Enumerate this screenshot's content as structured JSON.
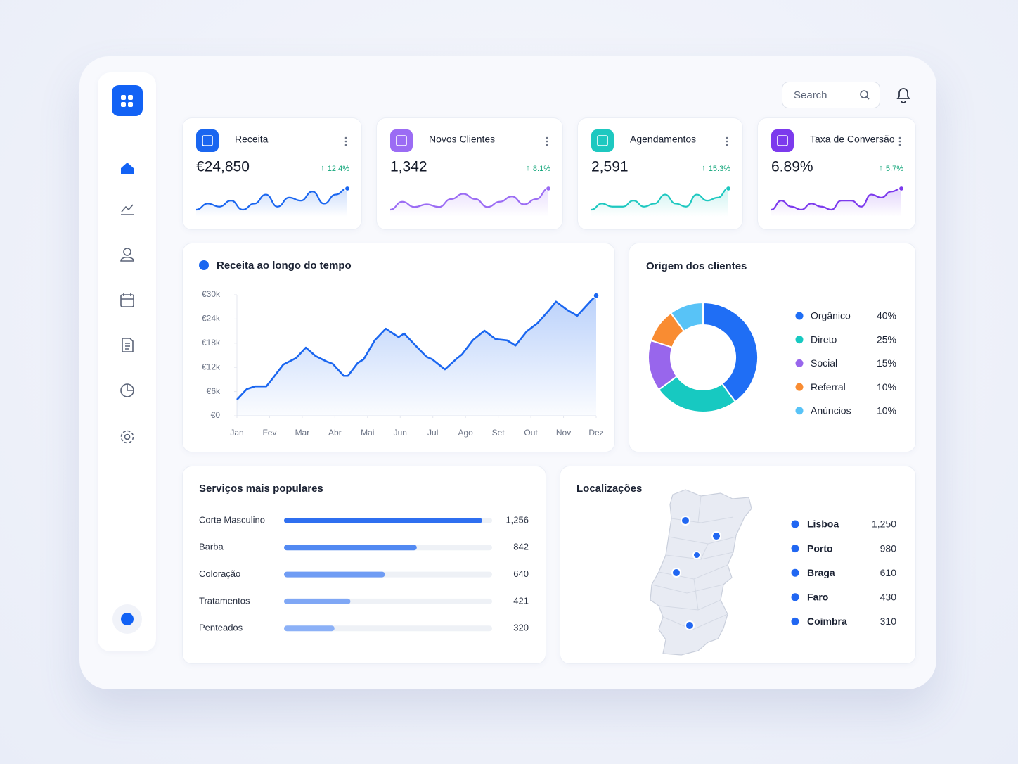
{
  "header": {
    "search_placeholder": "Search"
  },
  "kpis": [
    {
      "label": "Receita",
      "value": "€24,850",
      "change": "12.4%",
      "color": "#1a66f0",
      "spark": [
        3,
        5,
        4,
        6,
        3,
        5,
        8,
        4,
        7,
        6,
        9,
        5,
        8,
        10
      ]
    },
    {
      "label": "Novos Clientes",
      "value": "1,342",
      "change": "8.1%",
      "color": "#9b6cf4",
      "spark": [
        2,
        5,
        3,
        4,
        3,
        6,
        8,
        6,
        3,
        5,
        7,
        4,
        6,
        10
      ]
    },
    {
      "label": "Agendamentos",
      "value": "2,591",
      "change": "15.3%",
      "color": "#1ec8c0",
      "spark": [
        3,
        5,
        4,
        4,
        6,
        4,
        5,
        8,
        5,
        4,
        8,
        6,
        7,
        10
      ]
    },
    {
      "label": "Taxa de Conversão",
      "value": "6.89%",
      "change": "5.7%",
      "color": "#7c3aed",
      "spark": [
        3,
        6,
        4,
        3,
        5,
        4,
        3,
        6,
        6,
        4,
        8,
        7,
        9,
        10
      ]
    }
  ],
  "chart_data": [
    {
      "type": "line",
      "title": "Receita ao longo do tempo",
      "color": "#1a66f0",
      "x": [
        0,
        0.3,
        0.56,
        0.9,
        1.08,
        1.42,
        1.81,
        2.11,
        2.41,
        2.76,
        2.93,
        3.27,
        3.4,
        3.7,
        3.88,
        4.22,
        4.56,
        4.74,
        4.95,
        5.12,
        5.47,
        5.81,
        5.98,
        6.37,
        6.72,
        6.89,
        7.23,
        7.58,
        7.92,
        8.27,
        8.53,
        8.87,
        9.21,
        9.56,
        9.77,
        10.12,
        10.42,
        10.85,
        11
      ],
      "values": [
        4000,
        6600,
        7300,
        7300,
        9100,
        12700,
        14300,
        16900,
        14800,
        13400,
        12900,
        9900,
        9900,
        13100,
        14000,
        18700,
        21600,
        20600,
        19500,
        20400,
        17400,
        14600,
        14000,
        11500,
        14100,
        15200,
        18800,
        21100,
        19000,
        18700,
        17400,
        20900,
        23000,
        26200,
        28300,
        26200,
        24800,
        28600,
        29800
      ],
      "xlim": [
        0,
        11
      ],
      "xticks": [
        {
          "value": 0,
          "label": "Jan"
        },
        {
          "value": 1,
          "label": "Fev"
        },
        {
          "value": 2,
          "label": "Mar"
        },
        {
          "value": 3,
          "label": "Abr"
        },
        {
          "value": 4,
          "label": "Mai"
        },
        {
          "value": 5,
          "label": "Jun"
        },
        {
          "value": 6,
          "label": "Jul"
        },
        {
          "value": 7,
          "label": "Ago"
        },
        {
          "value": 8,
          "label": "Set"
        },
        {
          "value": 9,
          "label": "Out"
        },
        {
          "value": 10,
          "label": "Nov"
        },
        {
          "value": 11,
          "label": "Dez"
        }
      ],
      "ylim": [
        0,
        30000
      ],
      "yticks": [
        {
          "value": 0,
          "label": "€0"
        },
        {
          "value": 6000,
          "label": "€6k"
        },
        {
          "value": 12000,
          "label": "€12k"
        },
        {
          "value": 18000,
          "label": "€18k"
        },
        {
          "value": 24000,
          "label": "€24k"
        },
        {
          "value": 30000,
          "label": "€30k"
        }
      ]
    },
    {
      "type": "pie",
      "title": "Origem dos clientes",
      "categories": [
        "Orgânico",
        "Direto",
        "Social",
        "Referral",
        "Anúncios"
      ],
      "values": [
        40,
        25,
        15,
        10,
        10
      ],
      "value_labels": [
        "40%",
        "25%",
        "15%",
        "10%",
        "10%"
      ],
      "colors": [
        "#1f6ef5",
        "#17c9c1",
        "#9866ec",
        "#f98c32",
        "#58c3f7"
      ]
    },
    {
      "type": "hbar",
      "title": "Serviços mais populares",
      "categories": [
        "Corte Masculino",
        "Barba",
        "Coloração",
        "Tratamentos",
        "Penteados"
      ],
      "values": [
        1256,
        842,
        640,
        421,
        320
      ],
      "value_labels": [
        "1,256",
        "842",
        "640",
        "421",
        "320"
      ],
      "xlim": [
        0,
        1320
      ],
      "colors": [
        "#2f6ff0",
        "#5289f2",
        "#6f9cf4",
        "#7fa7f5",
        "#8cb1f7"
      ]
    }
  ],
  "locations": {
    "title": "Localizações",
    "items": [
      {
        "name": "Lisboa",
        "value": "1,250"
      },
      {
        "name": "Porto",
        "value": "980"
      },
      {
        "name": "Braga",
        "value": "610"
      },
      {
        "name": "Faro",
        "value": "430"
      },
      {
        "name": "Coimbra",
        "value": "310"
      }
    ]
  }
}
